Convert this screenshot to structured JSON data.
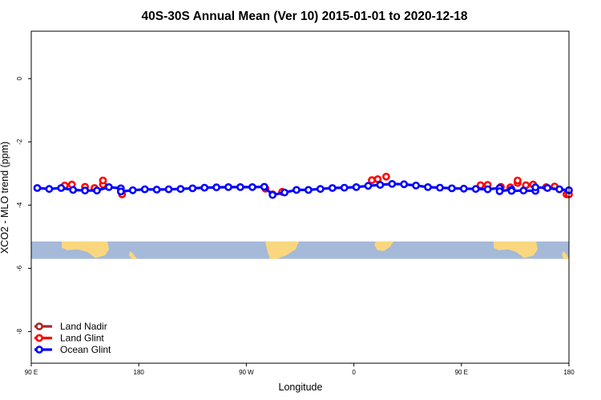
{
  "chart_data": {
    "type": "line",
    "title": "40S-30S Annual Mean (Ver 10)   2015-01-01 to 2020-12-18",
    "xlabel": "Longitude",
    "ylabel": "XCO2 - MLO trend (ppm)",
    "xlim": [
      90,
      540
    ],
    "ylim": [
      -9,
      1.5
    ],
    "x_ticks": [
      {
        "value": 90,
        "label": "90 E"
      },
      {
        "value": 180,
        "label": "180"
      },
      {
        "value": 270,
        "label": "90 W"
      },
      {
        "value": 360,
        "label": "0"
      },
      {
        "value": 450,
        "label": "90 E"
      },
      {
        "value": 540,
        "label": "180"
      }
    ],
    "y_ticks": [
      {
        "value": 0,
        "label": "0"
      },
      {
        "value": -2,
        "label": "-2"
      },
      {
        "value": -4,
        "label": "-4"
      },
      {
        "value": -6,
        "label": "-6"
      },
      {
        "value": -8,
        "label": "-8"
      }
    ],
    "legend_position": "bottom-left",
    "map_strip": {
      "lat_range": [
        -40,
        -30
      ],
      "y_range": [
        -5.15,
        -5.7
      ],
      "ocean_color": "#a5b9d9",
      "land_color": "#fad77e"
    },
    "series": [
      {
        "name": "Land Nadir",
        "color": "#a52a2a",
        "points": []
      },
      {
        "name": "Land Glint",
        "color": "#ff0000",
        "points": [
          {
            "x": 118,
            "y": -3.38
          },
          {
            "x": 124,
            "y": -3.35
          },
          {
            "x": 135,
            "y": -3.42
          },
          {
            "x": 143,
            "y": -3.46
          },
          {
            "x": 150,
            "y": -3.35
          },
          {
            "x": 150,
            "y": -3.22
          },
          {
            "x": 166,
            "y": -3.66
          },
          {
            "x": 286,
            "y": -3.48
          },
          {
            "x": 292,
            "y": -3.66
          },
          {
            "x": 300,
            "y": -3.58
          },
          {
            "x": 375,
            "y": -3.21
          },
          {
            "x": 380,
            "y": -3.18
          },
          {
            "x": 387,
            "y": -3.1
          },
          {
            "x": 504,
            "y": -3.37
          },
          {
            "x": 510,
            "y": -3.35
          },
          {
            "x": 521,
            "y": -3.43
          },
          {
            "x": 528,
            "y": -3.41
          },
          {
            "x": 540,
            "y": -3.66
          },
          {
            "x": 538,
            "y": -3.66
          },
          {
            "x": 466,
            "y": -3.37
          },
          {
            "x": 472,
            "y": -3.36
          },
          {
            "x": 483,
            "y": -3.42
          },
          {
            "x": 491,
            "y": -3.44
          },
          {
            "x": 497,
            "y": -3.3
          },
          {
            "x": 497,
            "y": -3.22
          }
        ]
      },
      {
        "name": "Ocean Glint",
        "color": "#0000ff",
        "points": [
          {
            "x": 95,
            "y": -3.46
          },
          {
            "x": 105,
            "y": -3.49
          },
          {
            "x": 115,
            "y": -3.46
          },
          {
            "x": 125,
            "y": -3.52
          },
          {
            "x": 135,
            "y": -3.54
          },
          {
            "x": 145,
            "y": -3.54
          },
          {
            "x": 155,
            "y": -3.43
          },
          {
            "x": 165,
            "y": -3.47
          },
          {
            "x": 165,
            "y": -3.57
          },
          {
            "x": 175,
            "y": -3.53
          },
          {
            "x": 185,
            "y": -3.5
          },
          {
            "x": 195,
            "y": -3.51
          },
          {
            "x": 205,
            "y": -3.5
          },
          {
            "x": 215,
            "y": -3.49
          },
          {
            "x": 225,
            "y": -3.47
          },
          {
            "x": 235,
            "y": -3.45
          },
          {
            "x": 245,
            "y": -3.44
          },
          {
            "x": 255,
            "y": -3.43
          },
          {
            "x": 265,
            "y": -3.43
          },
          {
            "x": 275,
            "y": -3.43
          },
          {
            "x": 285,
            "y": -3.42
          },
          {
            "x": 292,
            "y": -3.68
          },
          {
            "x": 302,
            "y": -3.6
          },
          {
            "x": 312,
            "y": -3.52
          },
          {
            "x": 322,
            "y": -3.52
          },
          {
            "x": 332,
            "y": -3.49
          },
          {
            "x": 342,
            "y": -3.46
          },
          {
            "x": 352,
            "y": -3.45
          },
          {
            "x": 362,
            "y": -3.43
          },
          {
            "x": 372,
            "y": -3.39
          },
          {
            "x": 382,
            "y": -3.36
          },
          {
            "x": 392,
            "y": -3.33
          },
          {
            "x": 402,
            "y": -3.34
          },
          {
            "x": 412,
            "y": -3.38
          },
          {
            "x": 422,
            "y": -3.43
          },
          {
            "x": 432,
            "y": -3.45
          },
          {
            "x": 442,
            "y": -3.47
          },
          {
            "x": 452,
            "y": -3.48
          },
          {
            "x": 462,
            "y": -3.49
          },
          {
            "x": 472,
            "y": -3.5
          },
          {
            "x": 482,
            "y": -3.46
          },
          {
            "x": 492,
            "y": -3.51
          },
          {
            "x": 502,
            "y": -3.54
          },
          {
            "x": 512,
            "y": -3.55
          },
          {
            "x": 512,
            "y": -3.44
          },
          {
            "x": 522,
            "y": -3.46
          },
          {
            "x": 532,
            "y": -3.5
          },
          {
            "x": 540,
            "y": -3.53
          },
          {
            "x": 492,
            "y": -3.55
          },
          {
            "x": 482,
            "y": -3.56
          }
        ]
      }
    ]
  }
}
